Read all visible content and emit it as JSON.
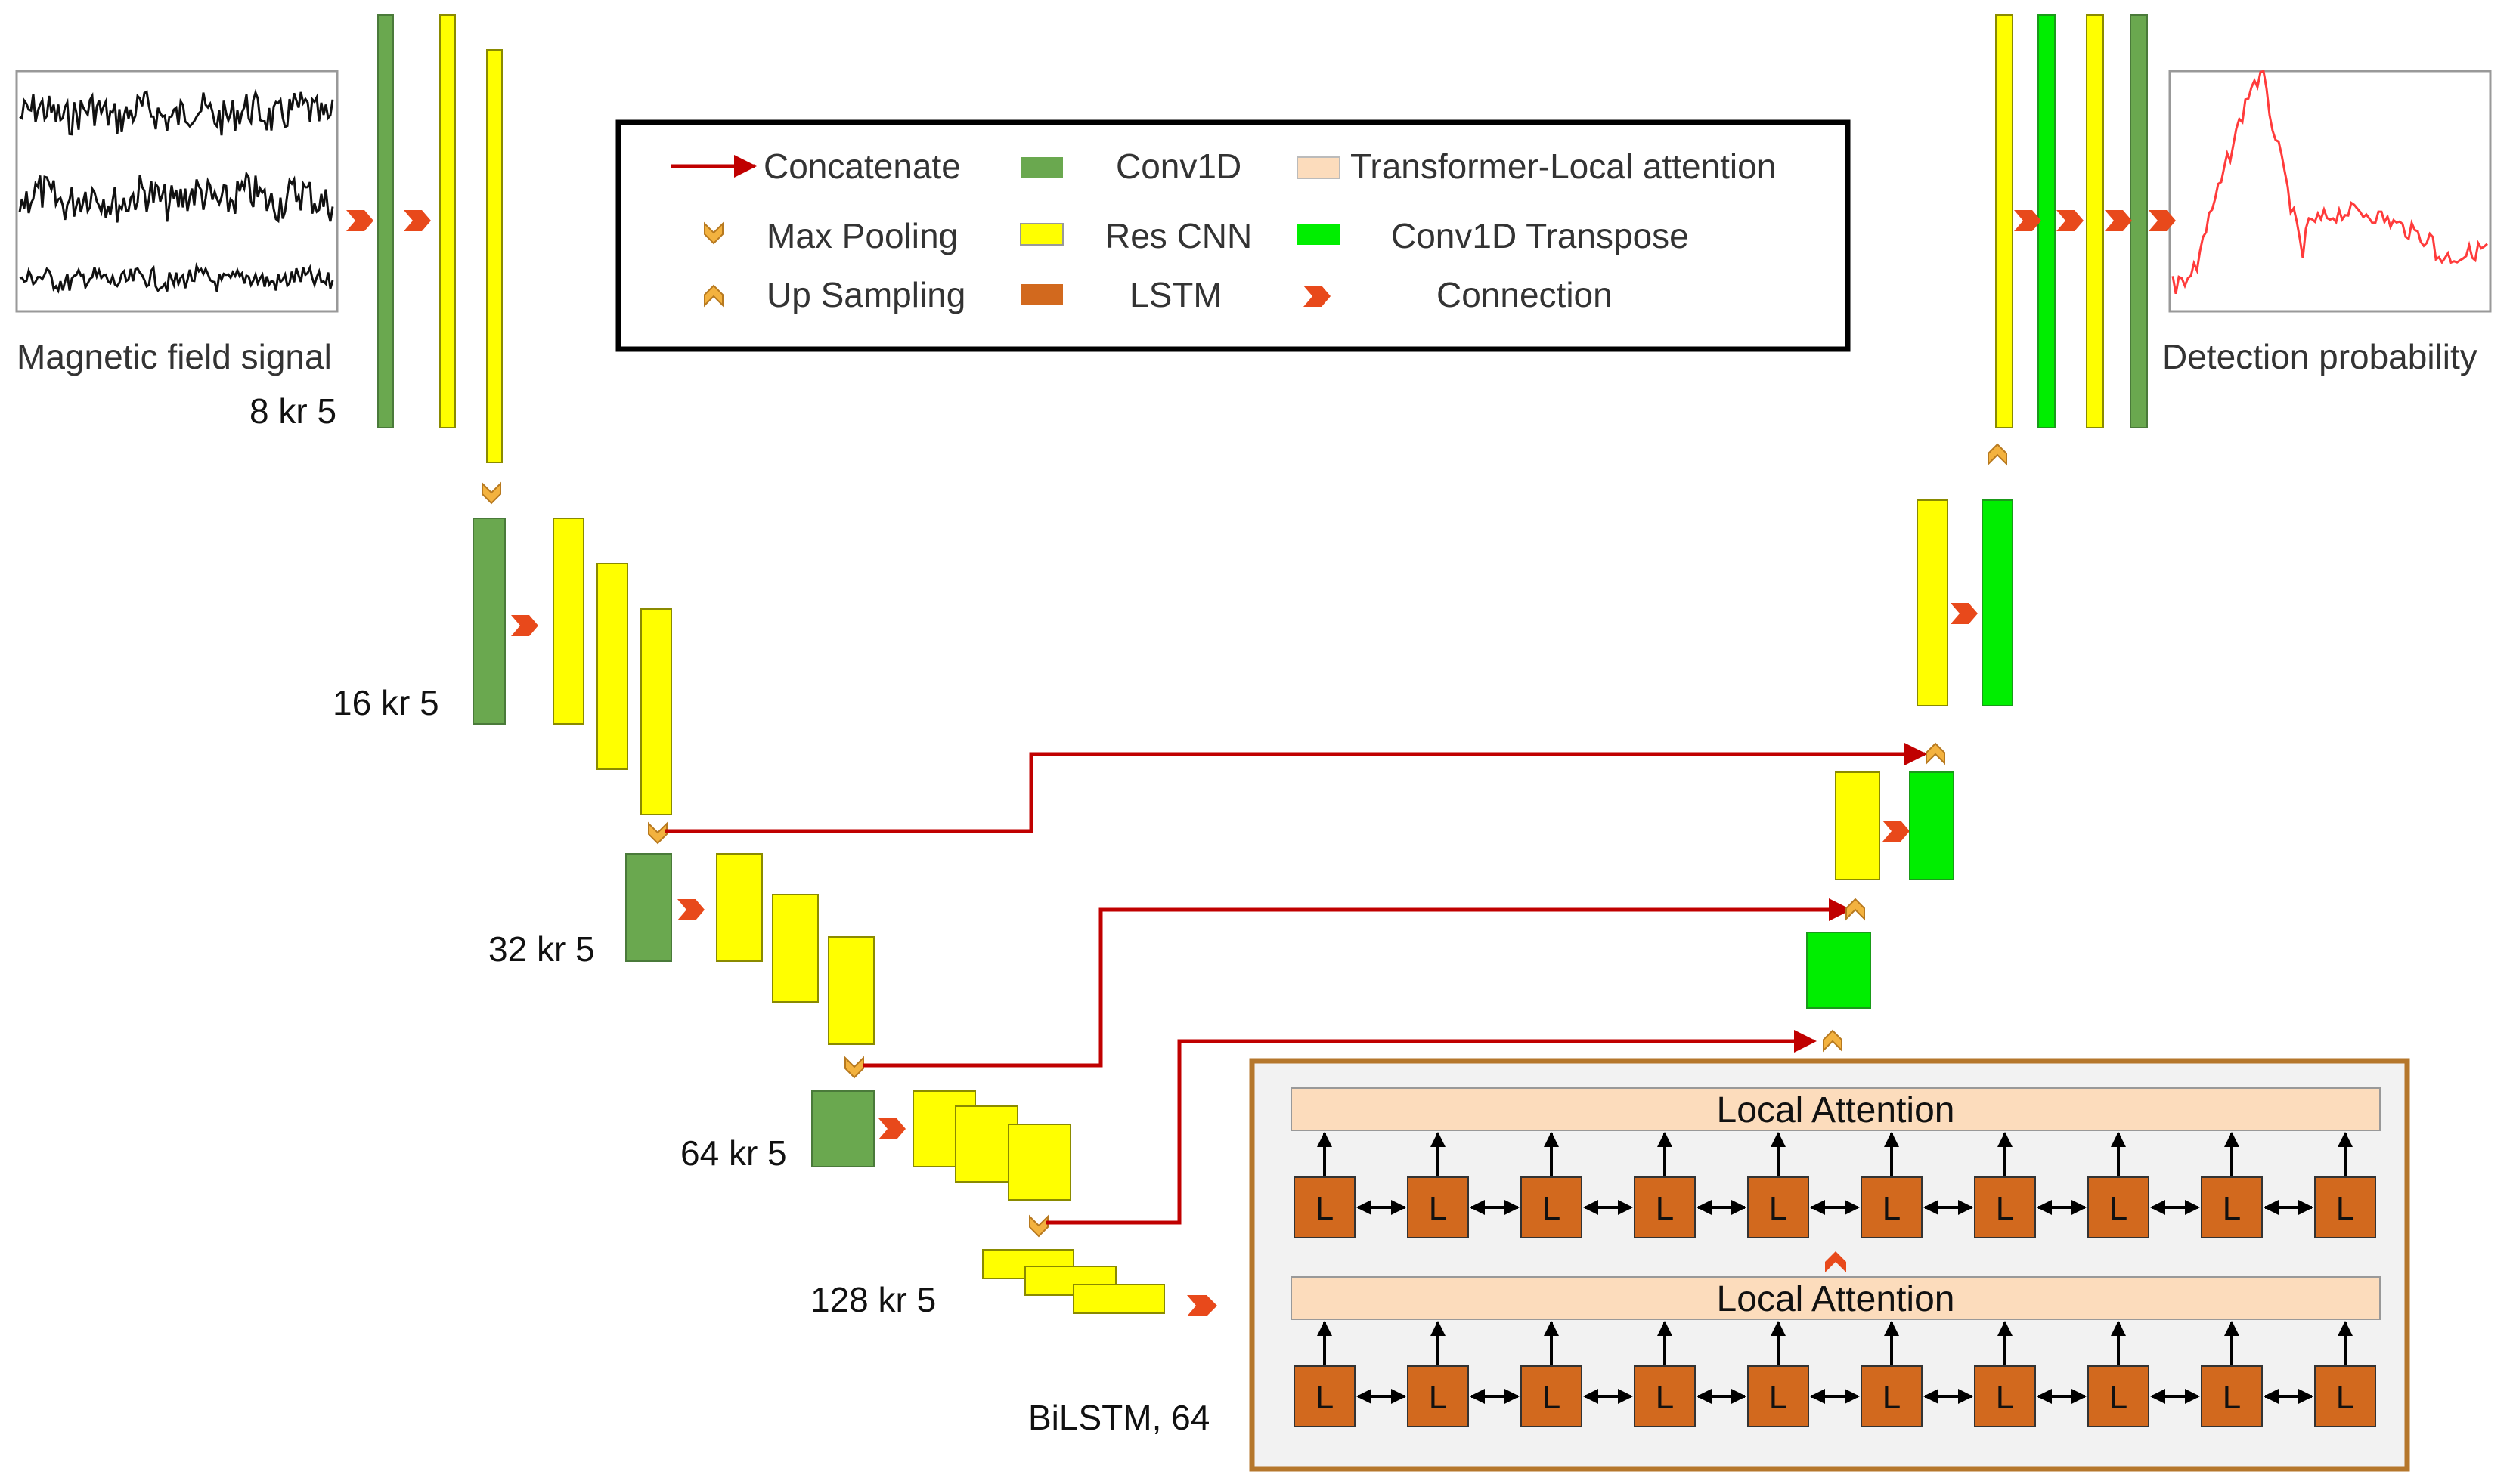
{
  "colors": {
    "conv1d": "#6aa84f",
    "res_cnn": "#ffff00",
    "conv1d_transpose": "#00ee00",
    "lstm": "#d2691e",
    "attention": "#fcdcbc",
    "connection": "#e8491b",
    "pooling": "#f3b23f",
    "concat": "#c00000",
    "bilstm_frame": "#b5772c"
  },
  "legend": {
    "concatenate": "Concatenate",
    "max_pooling": "Max Pooling",
    "up_sampling": "Up Sampling",
    "conv1d": "Conv1D",
    "res_cnn": "Res CNN",
    "lstm": "LSTM",
    "transformer": "Transformer-Local attention",
    "conv1d_transpose": "Conv1D Transpose",
    "connection": "Connection"
  },
  "input": {
    "label": "Magnetic field signal"
  },
  "output": {
    "label": "Detection probability"
  },
  "encoder": {
    "level1": "8 kr 5",
    "level2": "16 kr 5",
    "level3": "32 kr 5",
    "level4": "64 kr 5",
    "level5": "128 kr 5"
  },
  "bilstm": {
    "label": "BiLSTM, 64",
    "attention_top": "Local Attention",
    "attention_bottom": "Local Attention",
    "cell_label": "L"
  }
}
